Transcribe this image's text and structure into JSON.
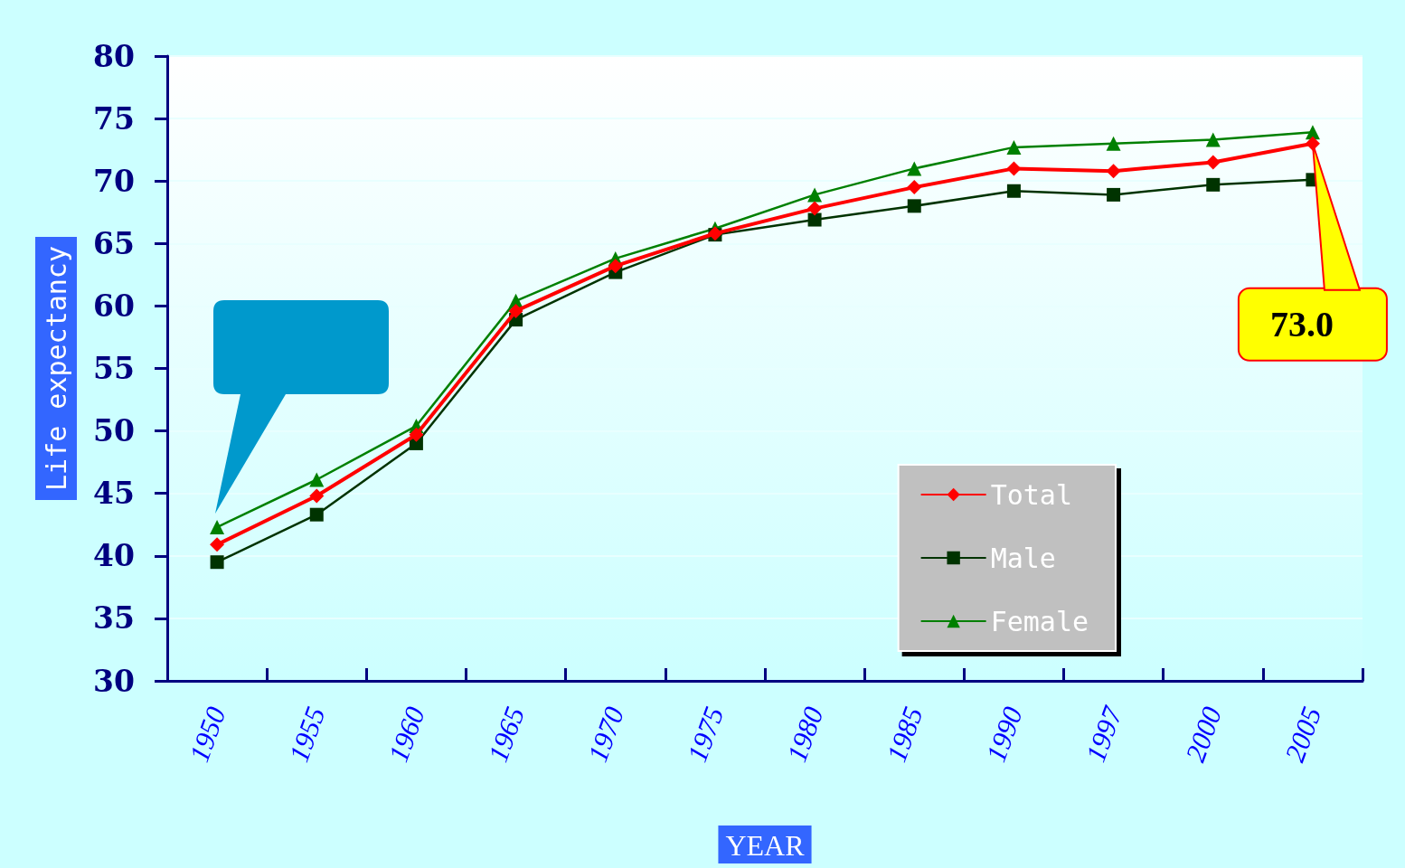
{
  "chart_data": {
    "type": "line",
    "xlabel": "YEAR",
    "ylabel": "Life expectancy",
    "categories": [
      "1950",
      "1955",
      "1960",
      "1965",
      "1970",
      "1975",
      "1980",
      "1985",
      "1990",
      "1997",
      "2000",
      "2005"
    ],
    "series": [
      {
        "name": "Total",
        "color": "#ff0000",
        "marker": "diamond",
        "values": [
          40.9,
          44.8,
          49.7,
          59.6,
          63.2,
          65.8,
          67.8,
          69.5,
          71.0,
          70.8,
          71.5,
          73.0
        ]
      },
      {
        "name": "Male",
        "color": "#003300",
        "marker": "square",
        "values": [
          39.5,
          43.3,
          49.0,
          58.9,
          62.7,
          65.7,
          66.9,
          68.0,
          69.2,
          68.9,
          69.7,
          70.1
        ]
      },
      {
        "name": "Female",
        "color": "#008000",
        "marker": "triangle",
        "values": [
          42.3,
          46.1,
          50.4,
          60.4,
          63.8,
          66.2,
          68.9,
          71.0,
          72.7,
          73.0,
          73.3,
          73.9
        ]
      }
    ],
    "ylim": [
      30,
      80
    ],
    "yticks": [
      30,
      35,
      40,
      45,
      50,
      55,
      60,
      65,
      70,
      75,
      80
    ],
    "grid": "y",
    "legend": "bottom right",
    "annotations": [
      {
        "text": "73.0",
        "x": "2005",
        "y": 73.0
      }
    ]
  }
}
